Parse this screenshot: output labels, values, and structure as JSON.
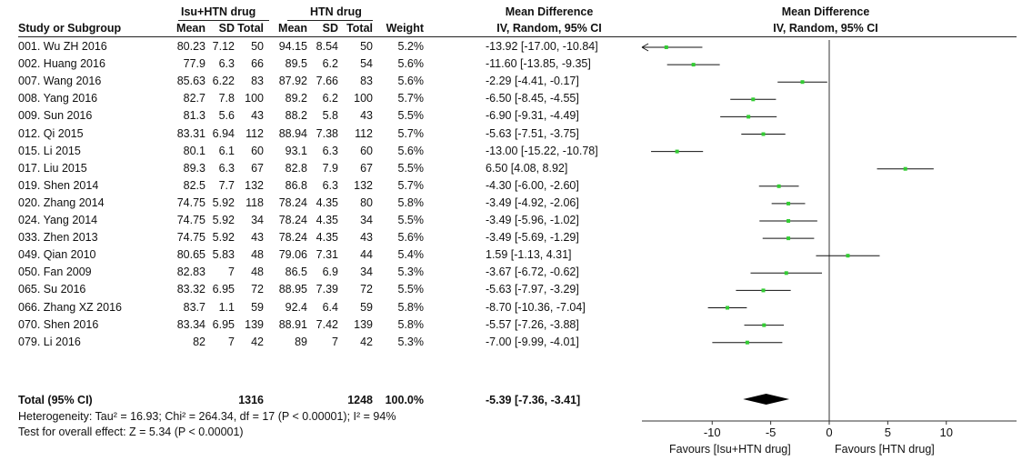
{
  "headers": {
    "group1": "Isu+HTN drug",
    "group2": "HTN drug",
    "mean_difference_col": "Mean Difference",
    "mean_difference_sub": "IV, Random, 95% CI",
    "plot_title": "Mean Difference",
    "plot_sub": "IV, Random, 95% CI",
    "study": "Study or Subgroup",
    "mean": "Mean",
    "sd": "SD",
    "total": "Total",
    "weight": "Weight"
  },
  "studies": [
    {
      "study": "001. Wu ZH 2016",
      "m1": "80.23",
      "sd1": "7.12",
      "n1": "50",
      "m2": "94.15",
      "sd2": "8.54",
      "n2": "50",
      "weight": "5.2%",
      "ci": "-13.92 [-17.00, -10.84]"
    },
    {
      "study": "002. Huang 2016",
      "m1": "77.9",
      "sd1": "6.3",
      "n1": "66",
      "m2": "89.5",
      "sd2": "6.2",
      "n2": "54",
      "weight": "5.6%",
      "ci": "-11.60 [-13.85, -9.35]"
    },
    {
      "study": "007. Wang 2016",
      "m1": "85.63",
      "sd1": "6.22",
      "n1": "83",
      "m2": "87.92",
      "sd2": "7.66",
      "n2": "83",
      "weight": "5.6%",
      "ci": "-2.29 [-4.41, -0.17]"
    },
    {
      "study": "008. Yang 2016",
      "m1": "82.7",
      "sd1": "7.8",
      "n1": "100",
      "m2": "89.2",
      "sd2": "6.2",
      "n2": "100",
      "weight": "5.7%",
      "ci": "-6.50 [-8.45, -4.55]"
    },
    {
      "study": "009. Sun 2016",
      "m1": "81.3",
      "sd1": "5.6",
      "n1": "43",
      "m2": "88.2",
      "sd2": "5.8",
      "n2": "43",
      "weight": "5.5%",
      "ci": "-6.90 [-9.31, -4.49]"
    },
    {
      "study": "012. Qi 2015",
      "m1": "83.31",
      "sd1": "6.94",
      "n1": "112",
      "m2": "88.94",
      "sd2": "7.38",
      "n2": "112",
      "weight": "5.7%",
      "ci": "-5.63 [-7.51, -3.75]"
    },
    {
      "study": "015. Li 2015",
      "m1": "80.1",
      "sd1": "6.1",
      "n1": "60",
      "m2": "93.1",
      "sd2": "6.3",
      "n2": "60",
      "weight": "5.6%",
      "ci": "-13.00 [-15.22, -10.78]"
    },
    {
      "study": "017. Liu 2015",
      "m1": "89.3",
      "sd1": "6.3",
      "n1": "67",
      "m2": "82.8",
      "sd2": "7.9",
      "n2": "67",
      "weight": "5.5%",
      "ci": "6.50 [4.08, 8.92]"
    },
    {
      "study": "019. Shen 2014",
      "m1": "82.5",
      "sd1": "7.7",
      "n1": "132",
      "m2": "86.8",
      "sd2": "6.3",
      "n2": "132",
      "weight": "5.7%",
      "ci": "-4.30 [-6.00, -2.60]"
    },
    {
      "study": "020. Zhang 2014",
      "m1": "74.75",
      "sd1": "5.92",
      "n1": "118",
      "m2": "78.24",
      "sd2": "4.35",
      "n2": "80",
      "weight": "5.8%",
      "ci": "-3.49 [-4.92, -2.06]"
    },
    {
      "study": "024. Yang 2014",
      "m1": "74.75",
      "sd1": "5.92",
      "n1": "34",
      "m2": "78.24",
      "sd2": "4.35",
      "n2": "34",
      "weight": "5.5%",
      "ci": "-3.49 [-5.96, -1.02]"
    },
    {
      "study": "033. Zhen 2013",
      "m1": "74.75",
      "sd1": "5.92",
      "n1": "43",
      "m2": "78.24",
      "sd2": "4.35",
      "n2": "43",
      "weight": "5.6%",
      "ci": "-3.49 [-5.69, -1.29]"
    },
    {
      "study": "049. Qian 2010",
      "m1": "80.65",
      "sd1": "5.83",
      "n1": "48",
      "m2": "79.06",
      "sd2": "7.31",
      "n2": "44",
      "weight": "5.4%",
      "ci": "1.59 [-1.13, 4.31]"
    },
    {
      "study": "050. Fan 2009",
      "m1": "82.83",
      "sd1": "7",
      "n1": "48",
      "m2": "86.5",
      "sd2": "6.9",
      "n2": "34",
      "weight": "5.3%",
      "ci": "-3.67 [-6.72, -0.62]"
    },
    {
      "study": "065. Su 2016",
      "m1": "83.32",
      "sd1": "6.95",
      "n1": "72",
      "m2": "88.95",
      "sd2": "7.39",
      "n2": "72",
      "weight": "5.5%",
      "ci": "-5.63 [-7.97, -3.29]"
    },
    {
      "study": "066. Zhang XZ 2016",
      "m1": "83.7",
      "sd1": "1.1",
      "n1": "59",
      "m2": "92.4",
      "sd2": "6.4",
      "n2": "59",
      "weight": "5.8%",
      "ci": "-8.70 [-10.36, -7.04]"
    },
    {
      "study": "070. Shen 2016",
      "m1": "83.34",
      "sd1": "6.95",
      "n1": "139",
      "m2": "88.91",
      "sd2": "7.42",
      "n2": "139",
      "weight": "5.8%",
      "ci": "-5.57 [-7.26, -3.88]"
    },
    {
      "study": "079. Li 2016",
      "m1": "82",
      "sd1": "7",
      "n1": "42",
      "m2": "89",
      "sd2": "7",
      "n2": "42",
      "weight": "5.3%",
      "ci": "-7.00 [-9.99, -4.01]"
    }
  ],
  "total": {
    "label": "Total (95% CI)",
    "n1": "1316",
    "n2": "1248",
    "weight": "100.0%",
    "ci": "-5.39 [-7.36, -3.41]"
  },
  "heterogeneity": "Heterogeneity: Tau² = 16.93; Chi² = 264.34, df = 17 (P < 0.00001); I² = 94%",
  "overall_effect": "Test for overall effect: Z = 5.34 (P < 0.00001)",
  "axis": {
    "favours_left": "Favours [Isu+HTN drug]",
    "favours_right": "Favours [HTN drug]"
  },
  "colors": {
    "point": "#33cc33",
    "line": "#111111",
    "diamond": "#000000"
  },
  "chart_data": {
    "type": "forest",
    "xlim": [
      -16,
      16
    ],
    "xticks": [
      -10,
      -5,
      0,
      5,
      10
    ],
    "tick_labels": [
      "-10",
      "-5",
      "0",
      "5",
      "10"
    ],
    "studies": [
      {
        "name": "001. Wu ZH 2016",
        "md": -13.92,
        "lo": -17.0,
        "hi": -10.84
      },
      {
        "name": "002. Huang 2016",
        "md": -11.6,
        "lo": -13.85,
        "hi": -9.35
      },
      {
        "name": "007. Wang 2016",
        "md": -2.29,
        "lo": -4.41,
        "hi": -0.17
      },
      {
        "name": "008. Yang 2016",
        "md": -6.5,
        "lo": -8.45,
        "hi": -4.55
      },
      {
        "name": "009. Sun 2016",
        "md": -6.9,
        "lo": -9.31,
        "hi": -4.49
      },
      {
        "name": "012. Qi 2015",
        "md": -5.63,
        "lo": -7.51,
        "hi": -3.75
      },
      {
        "name": "015. Li 2015",
        "md": -13.0,
        "lo": -15.22,
        "hi": -10.78
      },
      {
        "name": "017. Liu 2015",
        "md": 6.5,
        "lo": 4.08,
        "hi": 8.92
      },
      {
        "name": "019. Shen 2014",
        "md": -4.3,
        "lo": -6.0,
        "hi": -2.6
      },
      {
        "name": "020. Zhang 2014",
        "md": -3.49,
        "lo": -4.92,
        "hi": -2.06
      },
      {
        "name": "024. Yang 2014",
        "md": -3.49,
        "lo": -5.96,
        "hi": -1.02
      },
      {
        "name": "033. Zhen 2013",
        "md": -3.49,
        "lo": -5.69,
        "hi": -1.29
      },
      {
        "name": "049. Qian 2010",
        "md": 1.59,
        "lo": -1.13,
        "hi": 4.31
      },
      {
        "name": "050. Fan 2009",
        "md": -3.67,
        "lo": -6.72,
        "hi": -0.62
      },
      {
        "name": "065. Su 2016",
        "md": -5.63,
        "lo": -7.97,
        "hi": -3.29
      },
      {
        "name": "066. Zhang XZ 2016",
        "md": -8.7,
        "lo": -10.36,
        "hi": -7.04
      },
      {
        "name": "070. Shen 2016",
        "md": -5.57,
        "lo": -7.26,
        "hi": -3.88
      },
      {
        "name": "079. Li 2016",
        "md": -7.0,
        "lo": -9.99,
        "hi": -4.01
      }
    ],
    "pooled": {
      "md": -5.39,
      "lo": -7.36,
      "hi": -3.41
    }
  }
}
